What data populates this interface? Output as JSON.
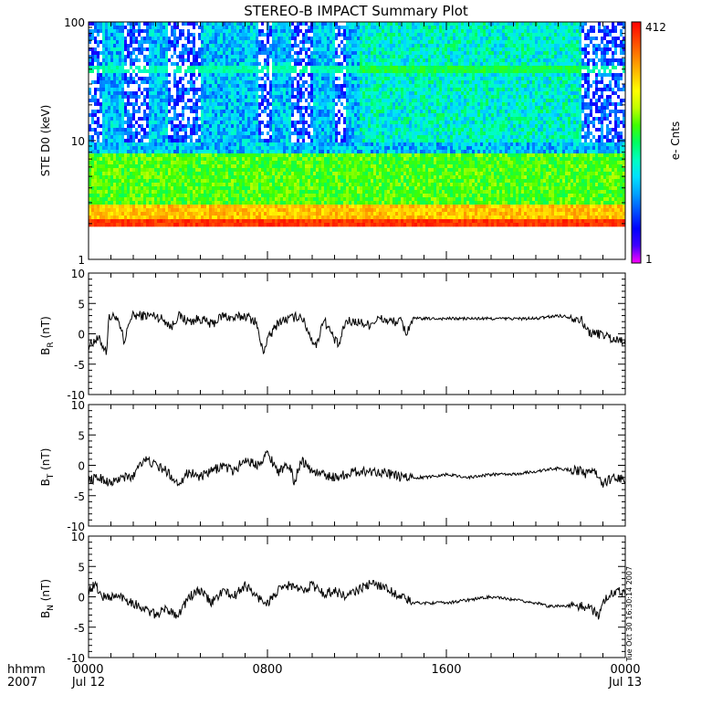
{
  "title": "STEREO-B IMPACT Summary Plot",
  "time_axis": {
    "corner_label_1": "hhmm",
    "corner_label_2": "2007",
    "ticks": [
      {
        "hhmm": "0000",
        "date": "Jul 12",
        "hour": 0
      },
      {
        "hhmm": "0800",
        "date": "",
        "hour": 8
      },
      {
        "hhmm": "1600",
        "date": "",
        "hour": 16
      },
      {
        "hhmm": "0000",
        "date": "Jul 13",
        "hour": 24
      }
    ],
    "range_hours": [
      0,
      24
    ]
  },
  "timestamp": "Tue Oct 30 16:30:14 2007",
  "spectrogram": {
    "ylabel": "STE D0 (keV)",
    "scale": "log",
    "yticks": [
      "1",
      "10",
      "100"
    ],
    "ytick_values": [
      1,
      10,
      100
    ],
    "ylim": [
      1,
      100
    ],
    "colorbar": {
      "label": "e- Cnts",
      "min_label": "1",
      "max_label": "412",
      "min": 1,
      "max": 412,
      "colors": [
        "#ff00ff",
        "#4000ff",
        "#0000ff",
        "#0050ff",
        "#00a0ff",
        "#00e0ff",
        "#00ffc0",
        "#00ff60",
        "#40ff00",
        "#c0ff00",
        "#ffff00",
        "#ffc000",
        "#ff8000",
        "#ff4000",
        "#ff0000"
      ]
    }
  },
  "panels": [
    {
      "ylabel_main": "B",
      "ylabel_sub": "R",
      "ylabel_unit": "(nT)",
      "yticks": [
        "10",
        "5",
        "0",
        "-5",
        "-10"
      ],
      "ylim": [
        -10,
        10
      ]
    },
    {
      "ylabel_main": "B",
      "ylabel_sub": "T",
      "ylabel_unit": "(nT)",
      "yticks": [
        "10",
        "5",
        "0",
        "-5",
        "-10"
      ],
      "ylim": [
        -10,
        10
      ]
    },
    {
      "ylabel_main": "B",
      "ylabel_sub": "N",
      "ylabel_unit": "(nT)",
      "yticks": [
        "10",
        "5",
        "0",
        "-5",
        "-10"
      ],
      "ylim": [
        -10,
        10
      ]
    }
  ],
  "chart_data": [
    {
      "type": "heatmap",
      "title": "STEREO-B IMPACT Summary Plot",
      "ylabel": "STE D0 (keV)",
      "x_range_hours": [
        0,
        24
      ],
      "y_range_keV": [
        1,
        100
      ],
      "colorbar_range": [
        1,
        412
      ],
      "note_lower_cutoff_keV": 2.0
    },
    {
      "type": "line",
      "ylabel": "BR (nT)",
      "ylim": [
        -10,
        10
      ],
      "x_hours": [
        0,
        0.3,
        0.5,
        0.8,
        0.9,
        1.2,
        1.5,
        1.6,
        1.8,
        2.0,
        2.5,
        3.0,
        3.5,
        3.7,
        4.0,
        4.5,
        5.0,
        5.5,
        6.0,
        6.5,
        7.0,
        7.5,
        7.6,
        7.8,
        8.0,
        8.5,
        9.0,
        9.5,
        10.0,
        10.2,
        10.5,
        10.8,
        11.0,
        11.2,
        11.3,
        11.5,
        12.0,
        12.5,
        13.0,
        13.5,
        14.0,
        14.2,
        14.5,
        15.0,
        16.0,
        17.0,
        18.0,
        19.0,
        20.0,
        21.0,
        22.0,
        22.2,
        22.5,
        23.0,
        23.5,
        24.0
      ],
      "values": [
        -2,
        -1,
        -1,
        -3,
        2.5,
        3,
        0,
        -2,
        2,
        3,
        3,
        3,
        2,
        1,
        3,
        2,
        2.5,
        1.5,
        3,
        2.5,
        3,
        2,
        0,
        -3,
        -1,
        2,
        2.5,
        3,
        -1,
        -2,
        2.5,
        0.5,
        -1,
        -2,
        -0.5,
        2,
        2,
        1.5,
        2.5,
        2,
        2,
        0,
        2.5,
        2.5,
        2.5,
        2.5,
        2.5,
        2.5,
        2.5,
        3,
        2.5,
        1,
        0,
        0,
        -1,
        -1
      ]
    },
    {
      "type": "line",
      "ylabel": "BT (nT)",
      "ylim": [
        -10,
        10
      ],
      "x_hours": [
        0,
        0.5,
        1.0,
        1.5,
        2.0,
        2.2,
        2.5,
        3.0,
        3.5,
        4.0,
        4.5,
        5.0,
        5.5,
        6.0,
        6.5,
        7.0,
        7.5,
        8.0,
        8.5,
        9.0,
        9.2,
        9.5,
        10.0,
        11.0,
        12.0,
        13.0,
        14.0,
        15.0,
        16.0,
        17.0,
        18.0,
        19.0,
        20.0,
        21.0,
        22.0,
        22.3,
        22.5,
        23.0,
        23.5,
        24.0
      ],
      "values": [
        -2.5,
        -2,
        -3,
        -2,
        -2,
        0,
        1,
        0,
        -1,
        -3,
        -1,
        -2,
        -1,
        0,
        -1,
        1,
        0,
        2,
        -1,
        0,
        -3,
        1,
        -1,
        -2,
        -1,
        -1,
        -2,
        -2,
        -1.5,
        -2,
        -1.5,
        -1.5,
        -1,
        -0.5,
        -1,
        -1.5,
        -0.5,
        -3,
        -2,
        -2.5
      ]
    },
    {
      "type": "line",
      "ylabel": "BN (nT)",
      "ylim": [
        -10,
        10
      ],
      "x_hours": [
        0,
        0.3,
        0.6,
        1.0,
        1.5,
        2.0,
        2.5,
        3.0,
        3.5,
        4.0,
        4.5,
        5.0,
        5.5,
        6.0,
        6.5,
        7.0,
        7.5,
        8.0,
        8.5,
        9.0,
        9.5,
        10.0,
        10.5,
        11.0,
        11.5,
        12.0,
        12.5,
        13.0,
        14.0,
        14.5,
        15.0,
        16.0,
        17.0,
        18.0,
        19.0,
        20.0,
        20.5,
        21.0,
        21.5,
        22.0,
        22.5,
        22.8,
        23.0,
        23.5,
        24.0
      ],
      "values": [
        1,
        2,
        0,
        0,
        0,
        -1,
        -2,
        -3,
        -2,
        -3,
        0,
        1,
        -1,
        1,
        0,
        2,
        0,
        -1,
        1,
        2,
        1,
        2,
        0.5,
        1,
        0,
        1,
        2,
        2,
        0,
        -1,
        -1,
        -1,
        -0.5,
        0,
        -0.5,
        -1,
        -1.5,
        -1.5,
        -1.5,
        -1.5,
        -2,
        -3,
        -1,
        1,
        1
      ]
    }
  ]
}
